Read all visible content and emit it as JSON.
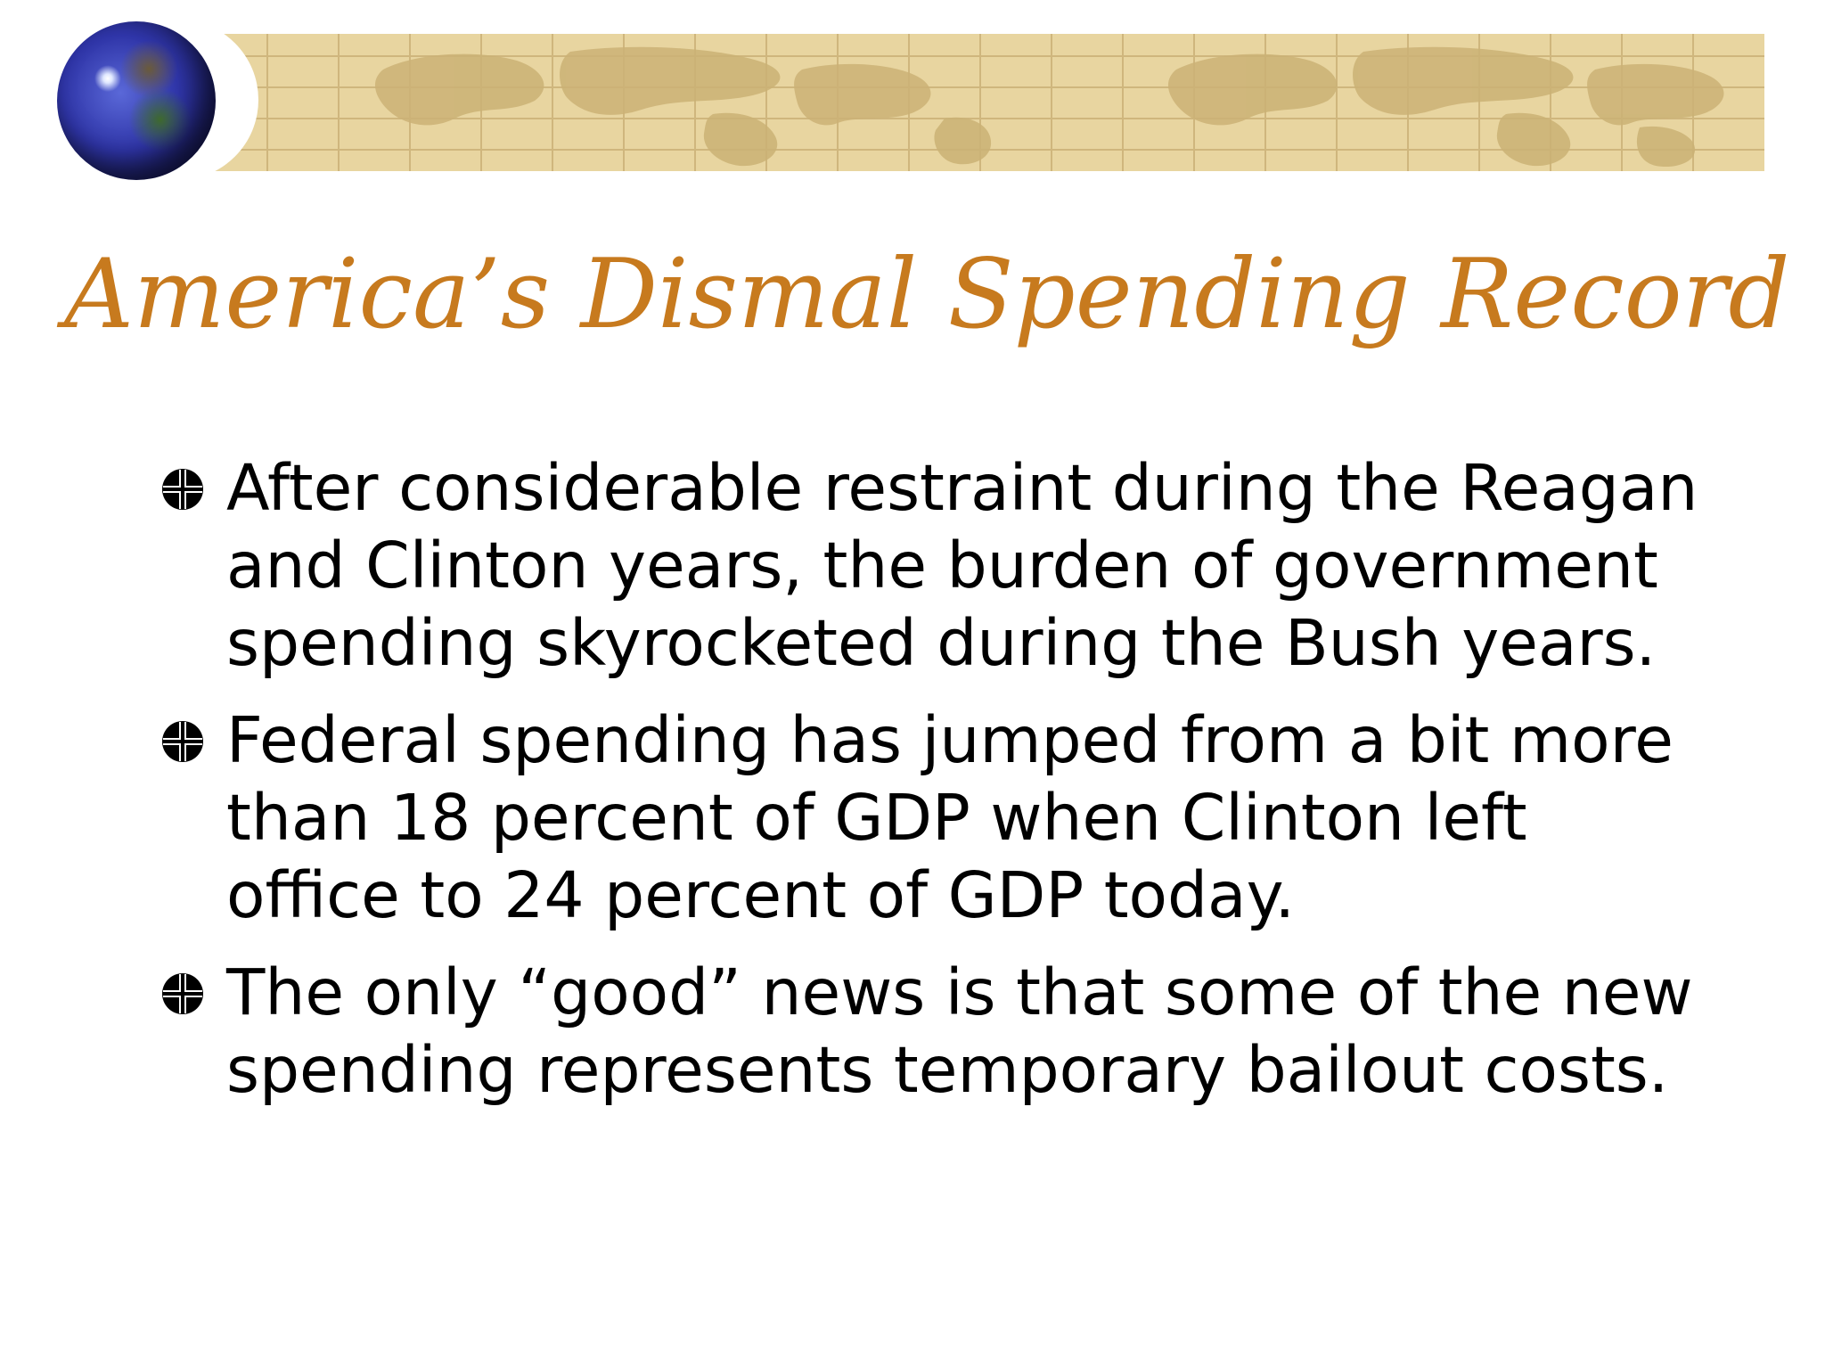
{
  "slide": {
    "title": "America’s Dismal Spending Record",
    "bullets": [
      "After considerable restraint during the Reagan and Clinton years, the burden of government spending skyrocketed during the Bush years.",
      "Federal spending has jumped from a bit more than 18 percent of GDP when Clinton left office to 24 percent of GDP today.",
      "The only “good” news is that some of the new spending represents temporary bailout costs."
    ]
  },
  "decor": {
    "banner_icon": "world-map-banner",
    "logo_icon": "globe-icon",
    "bullet_icon": "circle-cross-bullet-icon",
    "title_color": "#c77a1e",
    "banner_color": "#e8d5a0"
  }
}
